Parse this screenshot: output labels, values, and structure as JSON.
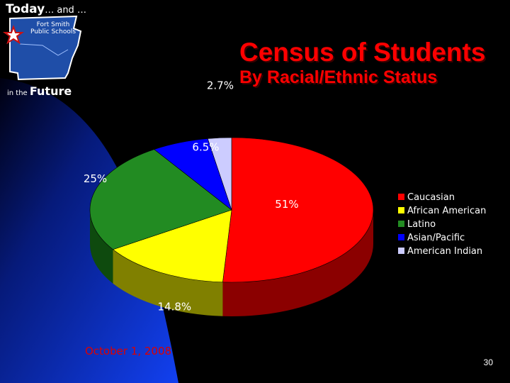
{
  "logo": {
    "today": "Today",
    "today_suffix": "… and …",
    "school_line1": "Fort Smith",
    "school_line2": "Public Schools",
    "future_prefix": "in the",
    "future_word": "Future"
  },
  "colors": {
    "background": "#000000",
    "swoosh": "#0a2bd6",
    "title": "#ff0000",
    "date": "#dd0000"
  },
  "chart_data": {
    "type": "pie",
    "title": "Census of Students",
    "subtitle": "By Racial/Ethnic Status",
    "categories": [
      "Caucasian",
      "African American",
      "Latino",
      "Asian/Pacific",
      "American Indian"
    ],
    "values": [
      51,
      14.8,
      25,
      6.5,
      2.7
    ],
    "data_labels": [
      "51%",
      "14.8%",
      "25%",
      "6.5%",
      "2.7%"
    ],
    "colors": [
      "#ff0000",
      "#ffff00",
      "#228b22",
      "#0000ff",
      "#ccccff"
    ],
    "side_colors": [
      "#8b0000",
      "#808000",
      "#0e4a0e",
      "#000080",
      "#8a8ab8"
    ],
    "legend_position": "right",
    "style": "3d"
  },
  "footer": {
    "date": "October 1, 2008",
    "page_number": "30"
  }
}
